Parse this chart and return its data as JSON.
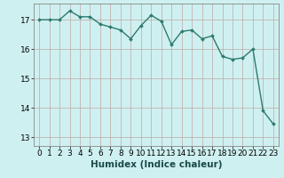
{
  "x": [
    0,
    1,
    2,
    3,
    4,
    5,
    6,
    7,
    8,
    9,
    10,
    11,
    12,
    13,
    14,
    15,
    16,
    17,
    18,
    19,
    20,
    21,
    22,
    23
  ],
  "y": [
    17.0,
    17.0,
    17.0,
    17.3,
    17.1,
    17.1,
    16.85,
    16.75,
    16.65,
    16.35,
    16.8,
    17.15,
    16.95,
    16.15,
    16.6,
    16.65,
    16.35,
    16.45,
    15.75,
    15.65,
    15.7,
    16.0,
    13.9,
    13.45
  ],
  "line_color": "#2d7a6e",
  "marker": "D",
  "marker_size": 2.0,
  "line_width": 1.0,
  "bg_color": "#cff0f0",
  "grid_color": "#c0a8a8",
  "xlabel": "Humidex (Indice chaleur)",
  "xlabel_fontsize": 7.5,
  "ylim": [
    12.7,
    17.55
  ],
  "xlim": [
    -0.5,
    23.5
  ],
  "yticks": [
    13,
    14,
    15,
    16,
    17
  ],
  "xticks": [
    0,
    1,
    2,
    3,
    4,
    5,
    6,
    7,
    8,
    9,
    10,
    11,
    12,
    13,
    14,
    15,
    16,
    17,
    18,
    19,
    20,
    21,
    22,
    23
  ],
  "tick_fontsize": 6.5,
  "figsize": [
    3.2,
    2.0
  ],
  "dpi": 100
}
